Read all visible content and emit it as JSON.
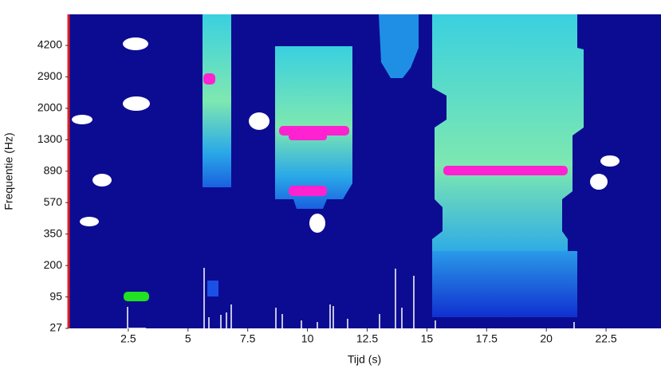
{
  "chart_data": {
    "type": "spectrogram",
    "xlabel": "Tijd (s)",
    "ylabel": "Frequentie (Hz)",
    "xlim": [
      0,
      24.8
    ],
    "xticks": [
      2.5,
      5,
      7.5,
      10,
      12.5,
      15,
      17.5,
      20,
      22.5
    ],
    "yticks": [
      27,
      95,
      200,
      350,
      570,
      890,
      1300,
      2000,
      2900,
      4200
    ]
  }
}
